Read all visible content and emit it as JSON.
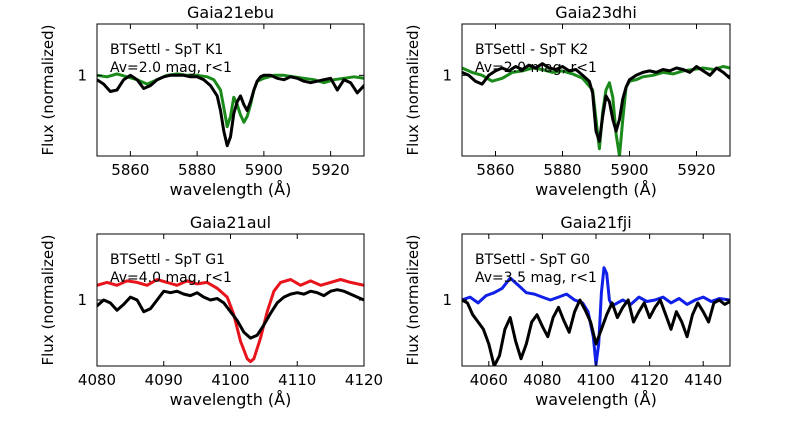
{
  "chart_data": [
    {
      "type": "line",
      "title": "Gaia21ebu",
      "xlabel": "wavelength (Å)",
      "ylabel": "Flux (normalized)",
      "xlim": [
        5850,
        5930
      ],
      "ylim": [
        0.45,
        1.35
      ],
      "xticks": [
        5860,
        5880,
        5900,
        5920
      ],
      "yticks": [
        1
      ],
      "annotations": [
        "BTSettl - SpT K1",
        "Av=2.0 mag, r<1"
      ],
      "series": [
        {
          "color": "#1a8a1a",
          "x": [
            5850,
            5853,
            5856,
            5859,
            5862,
            5865,
            5868,
            5871,
            5874,
            5877,
            5880,
            5883,
            5885,
            5887,
            5888,
            5889,
            5890,
            5891,
            5892,
            5893,
            5894,
            5895,
            5896,
            5897,
            5898,
            5900,
            5903,
            5906,
            5909,
            5912,
            5915,
            5918,
            5921,
            5924,
            5927,
            5930
          ],
          "y": [
            1.0,
            0.99,
            1.01,
            0.99,
            0.97,
            0.94,
            0.97,
            1.0,
            1.01,
            1.0,
            1.0,
            0.99,
            0.97,
            0.9,
            0.78,
            0.65,
            0.72,
            0.85,
            0.8,
            0.73,
            0.68,
            0.72,
            0.8,
            0.9,
            0.96,
            0.98,
            1.0,
            1.0,
            0.99,
            0.98,
            0.97,
            0.95,
            0.97,
            0.98,
            0.99,
            0.98
          ]
        },
        {
          "color": "#000000",
          "x": [
            5850,
            5852,
            5854,
            5856,
            5858,
            5860,
            5862,
            5864,
            5866,
            5868,
            5870,
            5872,
            5874,
            5876,
            5878,
            5880,
            5882,
            5884,
            5886,
            5887,
            5888,
            5889,
            5890,
            5891,
            5892,
            5893,
            5894,
            5895,
            5896,
            5897,
            5898,
            5899,
            5900,
            5902,
            5904,
            5906,
            5908,
            5910,
            5912,
            5914,
            5916,
            5918,
            5920,
            5922,
            5924,
            5926,
            5928,
            5930
          ],
          "y": [
            0.97,
            0.94,
            0.89,
            0.9,
            0.97,
            1.0,
            0.97,
            0.91,
            0.93,
            0.97,
            0.99,
            1.0,
            1.0,
            1.0,
            0.99,
            0.99,
            0.97,
            0.93,
            0.86,
            0.76,
            0.62,
            0.52,
            0.58,
            0.74,
            0.82,
            0.86,
            0.8,
            0.76,
            0.82,
            0.9,
            0.96,
            0.99,
            1.0,
            1.0,
            0.98,
            0.97,
            0.99,
            0.98,
            0.96,
            0.95,
            0.96,
            0.97,
            0.98,
            0.9,
            0.97,
            0.95,
            0.88,
            0.93
          ]
        }
      ]
    },
    {
      "type": "line",
      "title": "Gaia23dhi",
      "xlabel": "wavelength (Å)",
      "ylabel": "Flux (normalized)",
      "xlim": [
        5850,
        5930
      ],
      "ylim": [
        0.45,
        1.35
      ],
      "xticks": [
        5860,
        5880,
        5900,
        5920
      ],
      "yticks": [
        1
      ],
      "annotations": [
        "BTSettl - SpT K2",
        "Av=2.0 mag, r<1"
      ],
      "series": [
        {
          "color": "#1a8a1a",
          "x": [
            5850,
            5853,
            5856,
            5859,
            5862,
            5865,
            5868,
            5871,
            5874,
            5877,
            5880,
            5883,
            5886,
            5889,
            5890,
            5891,
            5892,
            5893,
            5894,
            5895,
            5896,
            5897,
            5898,
            5899,
            5900,
            5902,
            5904,
            5907,
            5910,
            5913,
            5916,
            5919,
            5922,
            5925,
            5928,
            5930
          ],
          "y": [
            1.05,
            1.02,
            1.0,
            0.96,
            0.98,
            1.02,
            1.03,
            1.05,
            1.04,
            1.02,
            1.03,
            1.01,
            0.98,
            0.9,
            0.7,
            0.5,
            0.75,
            0.9,
            0.95,
            0.85,
            0.6,
            0.45,
            0.7,
            0.92,
            0.96,
            0.97,
            0.99,
            1.0,
            1.02,
            1.01,
            1.03,
            1.04,
            1.05,
            1.04,
            1.06,
            1.05
          ]
        },
        {
          "color": "#000000",
          "x": [
            5850,
            5852,
            5854,
            5856,
            5858,
            5860,
            5862,
            5864,
            5866,
            5868,
            5870,
            5872,
            5874,
            5876,
            5878,
            5880,
            5882,
            5884,
            5886,
            5888,
            5889,
            5890,
            5891,
            5892,
            5893,
            5894,
            5895,
            5896,
            5897,
            5898,
            5899,
            5900,
            5902,
            5904,
            5906,
            5908,
            5910,
            5912,
            5914,
            5916,
            5918,
            5920,
            5922,
            5924,
            5926,
            5928,
            5930
          ],
          "y": [
            1.02,
            1.0,
            0.96,
            0.94,
            1.0,
            1.03,
            1.05,
            1.03,
            1.06,
            1.04,
            1.07,
            1.05,
            1.08,
            1.05,
            1.04,
            1.06,
            1.03,
            1.04,
            1.0,
            0.96,
            0.88,
            0.62,
            0.55,
            0.72,
            0.86,
            0.82,
            0.7,
            0.62,
            0.7,
            0.84,
            0.92,
            0.97,
            1.0,
            1.02,
            1.03,
            1.02,
            1.04,
            1.03,
            1.05,
            1.04,
            1.02,
            1.06,
            1.03,
            1.0,
            1.05,
            1.02,
            0.98
          ]
        }
      ]
    },
    {
      "type": "line",
      "title": "Gaia21aul",
      "xlabel": "wavelength (Å)",
      "ylabel": "Flux (normalized)",
      "xlim": [
        4080,
        4120
      ],
      "ylim": [
        0.55,
        1.45
      ],
      "xticks": [
        4080,
        4090,
        4100,
        4110,
        4120
      ],
      "yticks": [
        1
      ],
      "annotations": [
        "BTSettl - SpT G1",
        "Av=4.0 mag, r<1"
      ],
      "series": [
        {
          "color": "#e8141c",
          "x": [
            4080,
            4081.5,
            4083,
            4084.5,
            4086,
            4087.5,
            4089,
            4090.5,
            4092,
            4093.5,
            4095,
            4096.5,
            4098,
            4099.5,
            4100.5,
            4101.5,
            4102.5,
            4103,
            4103.5,
            4104.5,
            4105.5,
            4106.5,
            4107.5,
            4109,
            4110.5,
            4112,
            4113.5,
            4115,
            4116.5,
            4118,
            4120
          ],
          "y": [
            1.1,
            1.12,
            1.1,
            1.13,
            1.12,
            1.1,
            1.14,
            1.12,
            1.1,
            1.13,
            1.11,
            1.12,
            1.08,
            1.02,
            0.9,
            0.72,
            0.6,
            0.58,
            0.6,
            0.74,
            0.92,
            1.06,
            1.12,
            1.14,
            1.1,
            1.13,
            1.1,
            1.12,
            1.14,
            1.12,
            1.1
          ]
        },
        {
          "color": "#000000",
          "x": [
            4080,
            4081,
            4082,
            4083,
            4084,
            4085,
            4086,
            4087,
            4088,
            4089,
            4090,
            4091,
            4092,
            4093,
            4094,
            4095,
            4096,
            4097,
            4098,
            4099,
            4100,
            4101,
            4102,
            4103,
            4104,
            4105,
            4106,
            4107,
            4108,
            4109,
            4110,
            4111,
            4112,
            4113,
            4114,
            4115,
            4116,
            4117,
            4118,
            4119,
            4120
          ],
          "y": [
            0.96,
            1.0,
            0.98,
            0.93,
            0.97,
            1.02,
            1.0,
            0.92,
            0.94,
            1.0,
            1.06,
            1.05,
            1.06,
            1.04,
            1.03,
            1.05,
            1.02,
            1.0,
            1.01,
            0.98,
            0.92,
            0.86,
            0.78,
            0.74,
            0.76,
            0.83,
            0.91,
            0.98,
            1.02,
            1.04,
            1.05,
            1.04,
            1.06,
            1.05,
            1.03,
            1.06,
            1.07,
            1.06,
            1.04,
            1.02,
            1.0
          ]
        }
      ]
    },
    {
      "type": "line",
      "title": "Gaia21fji",
      "xlabel": "wavelength (Å)",
      "ylabel": "Flux (normalized)",
      "xlim": [
        4050,
        4150
      ],
      "ylim": [
        0.55,
        1.45
      ],
      "xticks": [
        4060,
        4080,
        4100,
        4120,
        4140
      ],
      "yticks": [
        1
      ],
      "annotations": [
        "BTSettl - SpT G0",
        "Av=3.5 mag, r<1"
      ],
      "series": [
        {
          "color": "#1020e8",
          "x": [
            4050,
            4053,
            4056,
            4059,
            4062,
            4065,
            4068,
            4071,
            4074,
            4077,
            4080,
            4083,
            4086,
            4089,
            4092,
            4095,
            4097,
            4099,
            4100,
            4101,
            4102,
            4103,
            4104,
            4105,
            4106,
            4108,
            4110,
            4113,
            4116,
            4119,
            4122,
            4125,
            4128,
            4131,
            4134,
            4137,
            4140,
            4143,
            4146,
            4150
          ],
          "y": [
            1.0,
            1.02,
            0.98,
            1.03,
            1.05,
            1.08,
            1.15,
            1.1,
            1.05,
            1.04,
            1.02,
            1.0,
            1.02,
            1.04,
            1.0,
            0.98,
            0.92,
            0.75,
            0.56,
            0.7,
            1.05,
            1.22,
            1.18,
            1.0,
            0.96,
            0.98,
            1.0,
            0.97,
            1.02,
            0.99,
            1.0,
            1.02,
            0.98,
            1.01,
            0.97,
            1.0,
            1.02,
            0.99,
            1.01,
            1.0
          ]
        },
        {
          "color": "#000000",
          "x": [
            4050,
            4052,
            4054,
            4056,
            4058,
            4060,
            4062,
            4064,
            4066,
            4068,
            4070,
            4072,
            4074,
            4076,
            4078,
            4080,
            4082,
            4084,
            4086,
            4088,
            4090,
            4092,
            4094,
            4096,
            4098,
            4100,
            4102,
            4104,
            4106,
            4108,
            4110,
            4112,
            4114,
            4116,
            4118,
            4120,
            4122,
            4124,
            4126,
            4128,
            4130,
            4132,
            4134,
            4136,
            4138,
            4140,
            4142,
            4144,
            4146,
            4148,
            4150
          ],
          "y": [
            1.0,
            0.98,
            0.9,
            0.85,
            0.8,
            0.7,
            0.55,
            0.62,
            0.8,
            0.88,
            0.72,
            0.6,
            0.7,
            0.85,
            0.9,
            0.82,
            0.75,
            0.88,
            0.95,
            0.86,
            0.78,
            0.92,
            1.0,
            0.93,
            0.85,
            0.7,
            0.8,
            0.9,
            0.98,
            0.88,
            0.95,
            1.0,
            0.85,
            0.92,
            0.98,
            0.88,
            0.95,
            1.0,
            0.9,
            0.8,
            0.92,
            0.85,
            0.75,
            0.9,
            0.98,
            0.92,
            0.85,
            0.98,
            1.0,
            0.97,
            0.99
          ]
        }
      ]
    }
  ]
}
